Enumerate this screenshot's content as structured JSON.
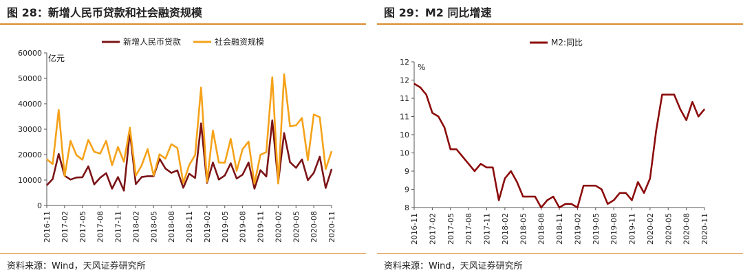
{
  "left": {
    "title": "图 28：新增人民币贷款和社会融资规模",
    "source": "资料来源：Wind，天风证券研究所",
    "chart_data": {
      "type": "line",
      "unit_label": "亿元",
      "ylim": [
        0,
        60000
      ],
      "y_ticks": [
        0,
        10000,
        20000,
        30000,
        40000,
        50000,
        60000
      ],
      "x_tick_labels": [
        "2016-11",
        "2017-02",
        "2017-05",
        "2017-08",
        "2017-11",
        "2018-02",
        "2018-05",
        "2018-08",
        "2018-11",
        "2019-02",
        "2019-05",
        "2019-08",
        "2019-11",
        "2020-02",
        "2020-05",
        "2020-08",
        "2020-11"
      ],
      "grid": false,
      "legend_position": "top",
      "series": [
        {
          "name": "新增人民币贷款",
          "color": "#7b1416",
          "values": [
            7946,
            10400,
            20300,
            11700,
            10200,
            11000,
            11100,
            15400,
            8300,
            10900,
            12700,
            6632,
            11200,
            5844,
            29000,
            8393,
            11200,
            11500,
            11500,
            18400,
            14500,
            12800,
            13800,
            6970,
            12500,
            10800,
            32300,
            8858,
            16900,
            10200,
            11800,
            16600,
            10600,
            12100,
            16900,
            6613,
            13900,
            11400,
            33500,
            9057,
            28500,
            17000,
            14800,
            18100,
            9942,
            12800,
            19200,
            6898,
            14300
          ]
        },
        {
          "name": "社会融资规模",
          "color": "#f5a219",
          "values": [
            18200,
            16300,
            37600,
            11500,
            25400,
            19800,
            18000,
            25800,
            21100,
            20400,
            25400,
            15800,
            23000,
            17200,
            30600,
            11700,
            15800,
            22200,
            11800,
            20100,
            18400,
            24100,
            22600,
            8855,
            15900,
            19800,
            46400,
            9300,
            29500,
            16900,
            16800,
            26200,
            13600,
            22100,
            25100,
            8564,
            19900,
            21000,
            50400,
            8600,
            51600,
            31100,
            31500,
            34400,
            17800,
            35800,
            34700,
            14300,
            21300
          ]
        }
      ]
    }
  },
  "right": {
    "title": "图 29：M2 同比增速",
    "source": "资料来源：Wind，天风证券研究所",
    "chart_data": {
      "type": "line",
      "unit_label": "%",
      "ylim": [
        8,
        12
      ],
      "y_ticks": [
        8,
        8.5,
        9,
        9.5,
        10,
        10.5,
        11,
        11.5,
        12
      ],
      "y_tick_labels": [
        "8",
        "9",
        "9",
        "10",
        "10",
        "11",
        "11",
        "12",
        "12"
      ],
      "x_tick_labels": [
        "2016-11",
        "2017-02",
        "2017-05",
        "2017-08",
        "2017-11",
        "2018-02",
        "2018-05",
        "2018-08",
        "2018-11",
        "2019-02",
        "2019-05",
        "2019-08",
        "2019-11",
        "2020-02",
        "2020-05",
        "2020-08",
        "2020-11"
      ],
      "grid": false,
      "legend_position": "top",
      "series": [
        {
          "name": "M2:同比",
          "color": "#8b0b0b",
          "values": [
            11.4,
            11.3,
            11.1,
            10.6,
            10.5,
            10.2,
            9.6,
            9.6,
            9.4,
            9.2,
            9.0,
            9.2,
            9.1,
            9.1,
            8.2,
            8.8,
            9.0,
            8.7,
            8.3,
            8.3,
            8.3,
            8.0,
            8.2,
            8.3,
            8.0,
            8.1,
            8.1,
            8.0,
            8.6,
            8.6,
            8.6,
            8.5,
            8.1,
            8.2,
            8.4,
            8.4,
            8.2,
            8.7,
            8.4,
            8.8,
            10.1,
            11.1,
            11.1,
            11.1,
            10.7,
            10.4,
            10.9,
            10.5,
            10.7
          ]
        }
      ]
    }
  }
}
